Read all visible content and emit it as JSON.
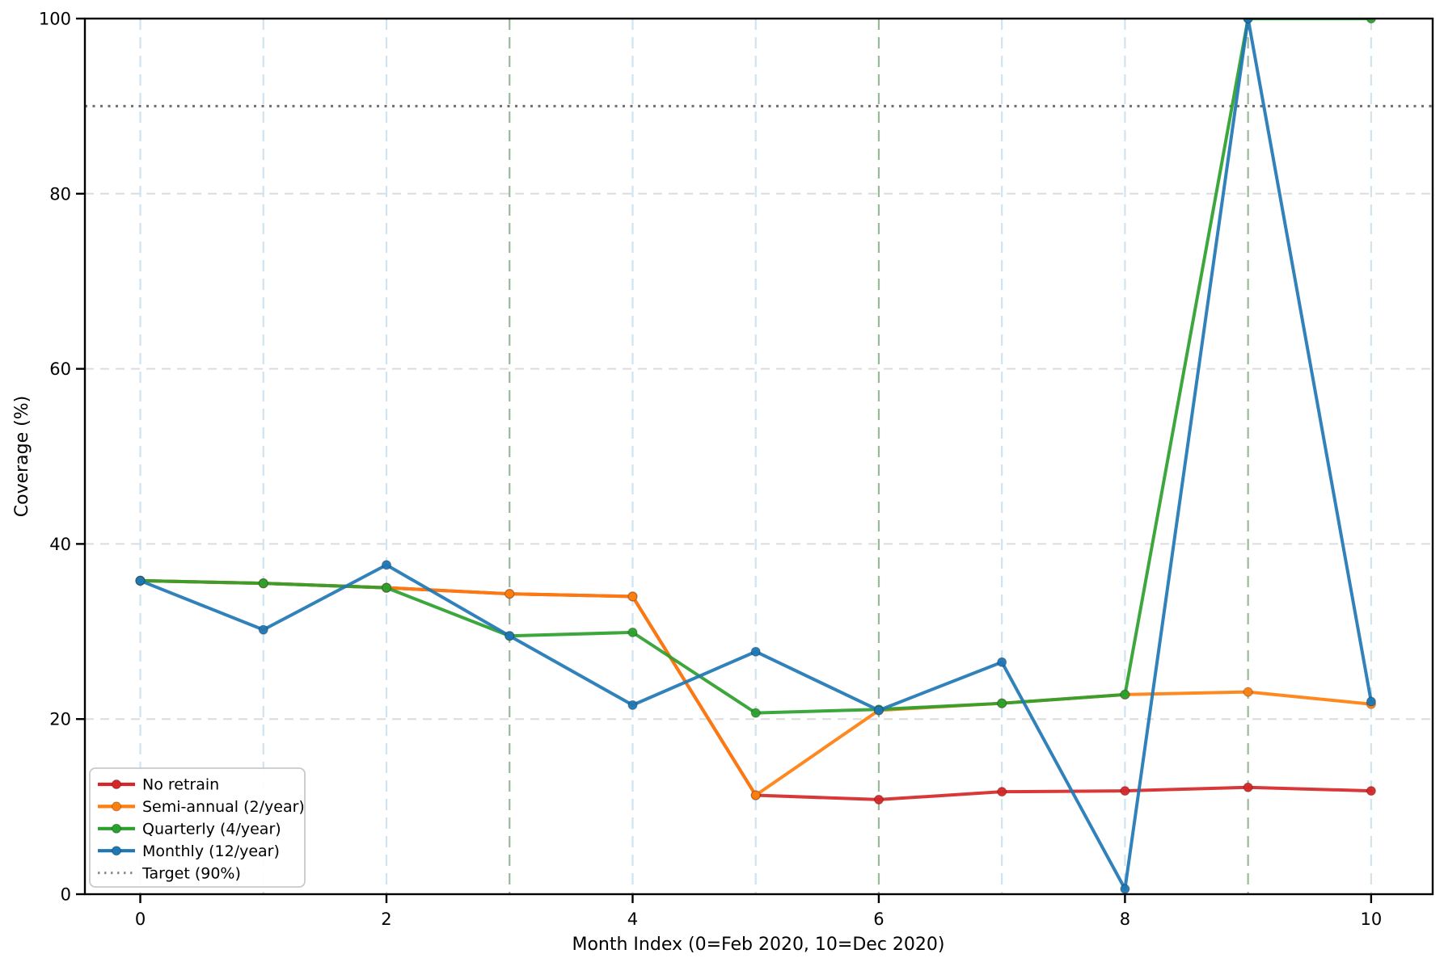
{
  "chart_data": {
    "type": "line",
    "title": "",
    "xlabel": "Month Index (0=Feb 2020, 10=Dec 2020)",
    "ylabel": "Coverage (%)",
    "x": [
      0,
      1,
      2,
      3,
      4,
      5,
      6,
      7,
      8,
      9,
      10
    ],
    "xticks": [
      0,
      2,
      4,
      6,
      8,
      10
    ],
    "yticks": [
      0,
      20,
      40,
      60,
      80,
      100
    ],
    "xlim": [
      -0.45,
      10.5
    ],
    "ylim": [
      0,
      100
    ],
    "grid": true,
    "legend_position": "lower-left",
    "series": [
      {
        "name": "No retrain",
        "color": "#d62728",
        "values": [
          35.8,
          35.5,
          35.0,
          34.3,
          34.0,
          11.3,
          10.8,
          11.7,
          11.8,
          12.2,
          11.8
        ]
      },
      {
        "name": "Semi-annual (2/year)",
        "color": "#ff7f0e",
        "values": [
          35.8,
          35.5,
          35.0,
          34.3,
          34.0,
          11.3,
          21.0,
          21.8,
          22.8,
          23.1,
          21.7
        ]
      },
      {
        "name": "Quarterly (4/year)",
        "color": "#2ca02c",
        "values": [
          35.8,
          35.5,
          35.0,
          29.5,
          29.9,
          20.7,
          21.1,
          21.8,
          22.8,
          100,
          100
        ]
      },
      {
        "name": "Monthly (12/year)",
        "color": "#1f77b4",
        "values": [
          35.8,
          30.2,
          37.6,
          29.5,
          21.6,
          27.7,
          21.0,
          26.5,
          0.6,
          100,
          22.0
        ]
      }
    ],
    "target_line": {
      "label": "Target (90%)",
      "value": 90,
      "color": "#6e6e6e",
      "legend_color": "#8c8c8c",
      "style": "dotted"
    },
    "vgridlines": {
      "months": [
        0,
        1,
        2,
        3,
        4,
        5,
        6,
        7,
        8,
        9,
        10
      ],
      "quarter_months": [
        3,
        6,
        9
      ],
      "month_color": "#cfe3f0",
      "quarter_color": "#9cb89c"
    },
    "hgrid_color": "#dcdcdc"
  }
}
